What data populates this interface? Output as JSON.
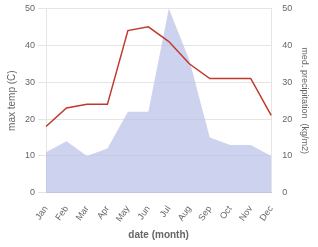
{
  "chart_data": {
    "type": "line",
    "xlabel": "date (month)",
    "ylabel": "max temp (C)",
    "y2label": "med. precipitation  (kg/m2)",
    "categories": [
      "Jan",
      "Feb",
      "Mar",
      "Apr",
      "May",
      "Jun",
      "Jul",
      "Aug",
      "Sep",
      "Oct",
      "Nov",
      "Dec"
    ],
    "series": [
      {
        "type": "area",
        "axis": "y2",
        "color": "#b8bfe8",
        "values": [
          11,
          14,
          10,
          12,
          22,
          22,
          50,
          36,
          15,
          13,
          13,
          10
        ]
      },
      {
        "type": "line",
        "color": "#c0392b",
        "values": [
          18,
          23,
          24,
          24,
          44,
          45,
          41,
          35,
          31,
          31,
          31,
          21
        ]
      }
    ],
    "ylim": [
      0,
      50
    ],
    "yticks": [
      0,
      10,
      20,
      30,
      40,
      50
    ],
    "y2lim": [
      0,
      50
    ],
    "y2ticks": [
      0,
      10,
      20,
      30,
      40,
      50
    ],
    "grid": true
  }
}
